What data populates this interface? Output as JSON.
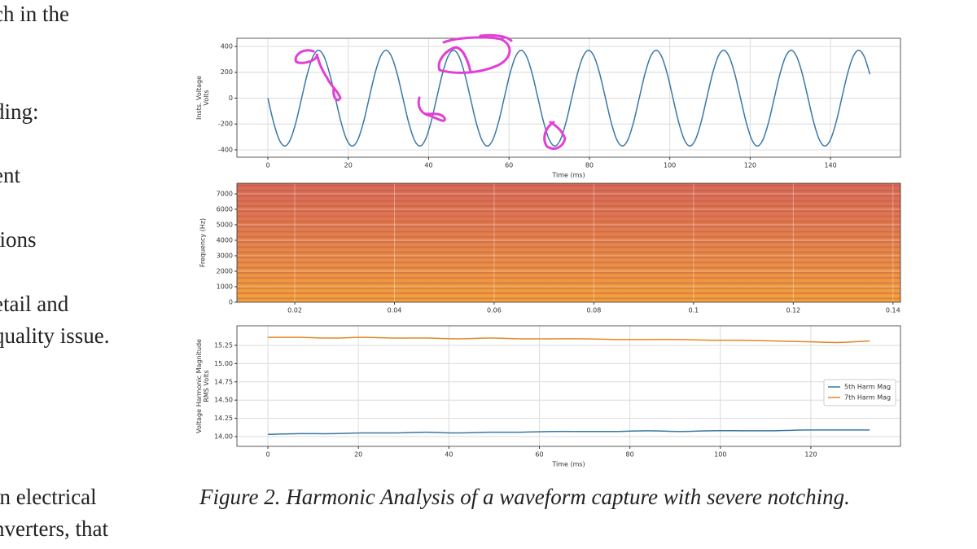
{
  "document": {
    "text_lines": [
      "ch in the",
      "ding:",
      "ent",
      "tions",
      "etail and",
      "quality issue.",
      "in electrical",
      "nverters, that"
    ],
    "caption": "Figure 2. Harmonic Analysis of a waveform capture with severe notching."
  },
  "chart_data": [
    {
      "type": "line",
      "xlabel": "Time (ms)",
      "ylabel": [
        "Insts. Voltage",
        "Volts"
      ],
      "xlim": [
        -7.7,
        157.4
      ],
      "ylim": [
        -457,
        463
      ],
      "xticks": [
        0,
        20,
        40,
        60,
        80,
        100,
        120,
        140
      ],
      "yticks": [
        -400,
        -200,
        0,
        200,
        400
      ],
      "grid": true,
      "x": [
        0,
        1.4,
        2.8,
        4.2,
        5.6,
        7,
        8.4,
        9.8,
        11.2,
        12.6,
        14,
        15.4,
        16.8,
        18.2,
        19.6,
        21,
        22.4,
        23.8,
        25.2,
        26.6,
        28,
        29.4,
        30.8,
        32.2,
        33.6,
        35,
        36.4,
        37.8,
        39.2,
        40.6,
        42,
        43.4,
        44.8,
        46.2,
        47.6,
        49,
        50.4,
        51.8,
        53.2,
        54.6,
        56,
        57.4,
        58.8,
        60.2,
        61.6,
        63,
        64.4,
        65.8,
        67.2,
        68.6,
        70,
        71.4,
        72.8,
        74.2,
        75.6,
        77,
        78.4,
        79.8,
        81.2,
        82.6,
        84,
        85.4,
        86.8,
        88.2,
        89.6,
        91,
        92.4,
        93.8,
        95.2,
        96.6,
        98,
        99.4,
        100.8,
        102.2,
        103.6,
        105,
        106.4,
        107.8,
        109.2,
        110.6,
        112,
        113.4,
        114.8,
        116.2,
        117.6,
        119,
        120.4,
        121.8,
        123.2,
        124.6,
        126,
        127.4,
        128.8,
        130.2,
        131.6,
        133,
        134.4,
        135.8,
        137.2,
        138.6,
        140,
        141.4,
        142.8,
        144.2,
        145.6,
        147,
        148.4,
        149.8
      ],
      "series": [
        {
          "color": "#3a78a6",
          "values": [
            0,
            -185,
            -320,
            -370,
            -320,
            -185,
            0,
            185,
            320,
            370,
            320,
            185,
            0,
            -185,
            -320,
            -370,
            -320,
            -185,
            0,
            185,
            320,
            370,
            320,
            185,
            0,
            -185,
            -320,
            -370,
            -320,
            -185,
            0,
            185,
            320,
            370,
            320,
            185,
            0,
            -185,
            -320,
            -370,
            -320,
            -185,
            0,
            185,
            320,
            370,
            320,
            185,
            0,
            -185,
            -320,
            -370,
            -320,
            -185,
            0,
            185,
            320,
            370,
            320,
            185,
            0,
            -185,
            -320,
            -370,
            -320,
            -185,
            0,
            185,
            320,
            370,
            320,
            185,
            0,
            -185,
            -320,
            -370,
            -320,
            -185,
            0,
            185,
            320,
            370,
            320,
            185,
            0,
            -185,
            -320,
            -370,
            -320,
            -185,
            0,
            185,
            320,
            370,
            320,
            185,
            0,
            -185,
            -320,
            -370,
            -320,
            -185,
            0,
            185,
            320,
            370,
            320,
            185
          ]
        }
      ]
    },
    {
      "type": "spectrogram",
      "ylabel": [
        "Frequency (Hz)"
      ],
      "xlim": [
        0.0084,
        0.1415
      ],
      "ylim": [
        0,
        7684
      ],
      "xticks": [
        0.02,
        0.04,
        0.06,
        0.08,
        0.1,
        0.12,
        0.14
      ],
      "yticks": [
        0,
        1000,
        2000,
        3000,
        4000,
        5000,
        6000,
        7000
      ],
      "grid": true
    },
    {
      "type": "line",
      "xlabel": "Time (ms)",
      "ylabel": [
        "Voltage Harmonic Magnitude",
        "RMS Volts"
      ],
      "xlim": [
        -6.84,
        139.8
      ],
      "ylim": [
        13.866,
        15.518
      ],
      "xticks": [
        0,
        20,
        40,
        60,
        80,
        100,
        120
      ],
      "yticks": [
        {
          "value": 14,
          "label": "14.00"
        },
        {
          "value": 14.25,
          "label": "14.25"
        },
        {
          "value": 14.5,
          "label": "14.50"
        },
        {
          "value": 14.75,
          "label": "14.75"
        },
        {
          "value": 15,
          "label": "15.00"
        },
        {
          "value": 15.25,
          "label": "15.25"
        }
      ],
      "grid": true,
      "legend": "center right",
      "x": [
        0,
        7,
        14,
        21,
        28,
        35,
        42,
        49,
        56,
        63,
        70,
        77,
        84,
        91,
        98,
        105,
        112,
        119,
        126,
        133
      ],
      "series": [
        {
          "name": "5th Harm Mag",
          "color": "#3a78a6",
          "values": [
            14.03,
            14.04,
            14.04,
            14.05,
            14.05,
            14.06,
            14.05,
            14.06,
            14.06,
            14.07,
            14.07,
            14.07,
            14.08,
            14.07,
            14.08,
            14.08,
            14.08,
            14.09,
            14.09,
            14.09
          ]
        },
        {
          "name": "7th Harm Mag",
          "color": "#e0892a",
          "values": [
            15.36,
            15.36,
            15.35,
            15.36,
            15.35,
            15.35,
            15.34,
            15.35,
            15.34,
            15.34,
            15.34,
            15.33,
            15.33,
            15.33,
            15.32,
            15.32,
            15.31,
            15.3,
            15.29,
            15.31
          ]
        }
      ]
    }
  ]
}
